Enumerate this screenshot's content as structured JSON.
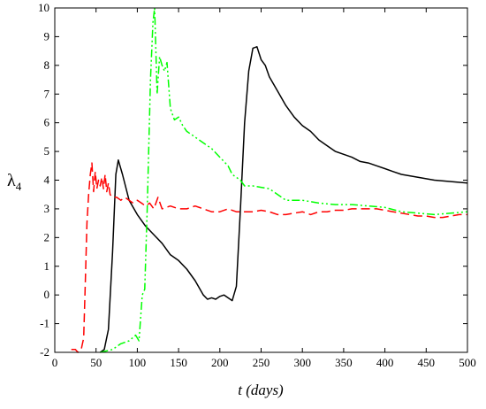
{
  "chart_data": {
    "type": "line",
    "xlabel": "t (days)",
    "ylabel": "λ",
    "ylabel_subscript": "4",
    "xlim": [
      0,
      500
    ],
    "ylim": [
      -2,
      10
    ],
    "x_ticks": [
      0,
      50,
      100,
      150,
      200,
      250,
      300,
      350,
      400,
      450,
      500
    ],
    "y_ticks": [
      -2,
      -1,
      0,
      1,
      2,
      3,
      4,
      5,
      6,
      7,
      8,
      9,
      10
    ],
    "grid": false,
    "legend": "none",
    "series": [
      {
        "color": "#000000",
        "style": "solid",
        "points": [
          [
            55,
            -2
          ],
          [
            60,
            -1.9
          ],
          [
            65,
            -1.2
          ],
          [
            70,
            1.5
          ],
          [
            74,
            4.2
          ],
          [
            77,
            4.7
          ],
          [
            82,
            4.2
          ],
          [
            90,
            3.3
          ],
          [
            100,
            2.8
          ],
          [
            110,
            2.4
          ],
          [
            120,
            2.1
          ],
          [
            130,
            1.8
          ],
          [
            140,
            1.4
          ],
          [
            150,
            1.2
          ],
          [
            160,
            0.9
          ],
          [
            170,
            0.5
          ],
          [
            180,
            0
          ],
          [
            185,
            -0.15
          ],
          [
            190,
            -0.1
          ],
          [
            195,
            -0.15
          ],
          [
            200,
            -0.05
          ],
          [
            205,
            0
          ],
          [
            210,
            -0.1
          ],
          [
            215,
            -0.2
          ],
          [
            220,
            0.3
          ],
          [
            225,
            3
          ],
          [
            230,
            6
          ],
          [
            235,
            7.8
          ],
          [
            240,
            8.6
          ],
          [
            245,
            8.65
          ],
          [
            250,
            8.2
          ],
          [
            255,
            8
          ],
          [
            260,
            7.6
          ],
          [
            270,
            7.1
          ],
          [
            280,
            6.6
          ],
          [
            290,
            6.2
          ],
          [
            300,
            5.9
          ],
          [
            310,
            5.7
          ],
          [
            320,
            5.4
          ],
          [
            330,
            5.2
          ],
          [
            340,
            5
          ],
          [
            350,
            4.9
          ],
          [
            360,
            4.8
          ],
          [
            370,
            4.65
          ],
          [
            380,
            4.6
          ],
          [
            390,
            4.5
          ],
          [
            400,
            4.4
          ],
          [
            410,
            4.3
          ],
          [
            420,
            4.2
          ],
          [
            440,
            4.1
          ],
          [
            460,
            4.0
          ],
          [
            480,
            3.95
          ],
          [
            500,
            3.9
          ]
        ]
      },
      {
        "color": "#00ff00",
        "style": "dash-dot-dot",
        "points": [
          [
            55,
            -2
          ],
          [
            70,
            -1.9
          ],
          [
            80,
            -1.7
          ],
          [
            90,
            -1.6
          ],
          [
            98,
            -1.4
          ],
          [
            102,
            -1.6
          ],
          [
            106,
            0
          ],
          [
            109,
            0.2
          ],
          [
            112,
            3
          ],
          [
            116,
            7.5
          ],
          [
            119,
            9.5
          ],
          [
            121,
            10
          ],
          [
            124,
            7
          ],
          [
            127,
            8.3
          ],
          [
            130,
            8.0
          ],
          [
            133,
            7.8
          ],
          [
            136,
            8.1
          ],
          [
            140,
            6.5
          ],
          [
            145,
            6.1
          ],
          [
            150,
            6.2
          ],
          [
            155,
            5.9
          ],
          [
            160,
            5.7
          ],
          [
            165,
            5.6
          ],
          [
            170,
            5.5
          ],
          [
            175,
            5.4
          ],
          [
            180,
            5.3
          ],
          [
            190,
            5.1
          ],
          [
            200,
            4.8
          ],
          [
            210,
            4.5
          ],
          [
            215,
            4.2
          ],
          [
            220,
            4.1
          ],
          [
            225,
            4.0
          ],
          [
            230,
            3.8
          ],
          [
            240,
            3.8
          ],
          [
            250,
            3.75
          ],
          [
            260,
            3.7
          ],
          [
            270,
            3.5
          ],
          [
            280,
            3.3
          ],
          [
            290,
            3.3
          ],
          [
            300,
            3.3
          ],
          [
            310,
            3.25
          ],
          [
            320,
            3.2
          ],
          [
            340,
            3.15
          ],
          [
            360,
            3.15
          ],
          [
            380,
            3.1
          ],
          [
            400,
            3.05
          ],
          [
            420,
            2.9
          ],
          [
            440,
            2.85
          ],
          [
            460,
            2.8
          ],
          [
            480,
            2.85
          ],
          [
            500,
            2.9
          ]
        ]
      },
      {
        "color": "#ff0000",
        "style": "dashed",
        "points": [
          [
            20,
            -1.9
          ],
          [
            25,
            -1.9
          ],
          [
            28,
            -2
          ],
          [
            32,
            -1.9
          ],
          [
            35,
            -1.5
          ],
          [
            37,
            0.5
          ],
          [
            39,
            2.5
          ],
          [
            41,
            3.5
          ],
          [
            43,
            4.2
          ],
          [
            45,
            4.6
          ],
          [
            47,
            3.6
          ],
          [
            49,
            4.3
          ],
          [
            51,
            3.7
          ],
          [
            53,
            4.0
          ],
          [
            55,
            3.8
          ],
          [
            57,
            4.1
          ],
          [
            59,
            3.7
          ],
          [
            61,
            4.2
          ],
          [
            63,
            3.6
          ],
          [
            65,
            3.9
          ],
          [
            67,
            3.5
          ],
          [
            70,
            3.4
          ],
          [
            75,
            3.4
          ],
          [
            80,
            3.3
          ],
          [
            85,
            3.4
          ],
          [
            90,
            3.3
          ],
          [
            95,
            3.2
          ],
          [
            100,
            3.3
          ],
          [
            105,
            3.2
          ],
          [
            110,
            3.1
          ],
          [
            115,
            3.2
          ],
          [
            120,
            3.0
          ],
          [
            125,
            3.4
          ],
          [
            130,
            3.0
          ],
          [
            140,
            3.1
          ],
          [
            150,
            3.0
          ],
          [
            160,
            3.0
          ],
          [
            170,
            3.1
          ],
          [
            180,
            3.0
          ],
          [
            190,
            2.9
          ],
          [
            200,
            2.9
          ],
          [
            210,
            3.0
          ],
          [
            220,
            2.9
          ],
          [
            230,
            2.9
          ],
          [
            240,
            2.9
          ],
          [
            250,
            2.95
          ],
          [
            260,
            2.9
          ],
          [
            270,
            2.8
          ],
          [
            280,
            2.8
          ],
          [
            290,
            2.85
          ],
          [
            300,
            2.9
          ],
          [
            310,
            2.8
          ],
          [
            320,
            2.9
          ],
          [
            330,
            2.9
          ],
          [
            340,
            2.95
          ],
          [
            350,
            2.95
          ],
          [
            360,
            3.0
          ],
          [
            370,
            3.0
          ],
          [
            380,
            3.0
          ],
          [
            390,
            3.0
          ],
          [
            400,
            2.95
          ],
          [
            410,
            2.9
          ],
          [
            420,
            2.85
          ],
          [
            430,
            2.8
          ],
          [
            440,
            2.75
          ],
          [
            450,
            2.75
          ],
          [
            460,
            2.7
          ],
          [
            470,
            2.7
          ],
          [
            480,
            2.75
          ],
          [
            490,
            2.8
          ],
          [
            500,
            2.8
          ]
        ]
      }
    ]
  }
}
